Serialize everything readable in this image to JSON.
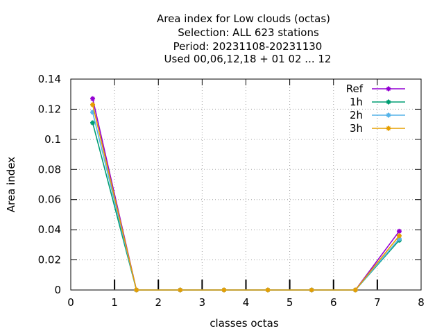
{
  "chart_data": {
    "type": "line",
    "title_lines": [
      "Area index  for Low clouds (octas)",
      "Selection: ALL    623 stations",
      "Period: 20231108-20231130",
      "Used  00,06,12,18 + 01 02 ... 12"
    ],
    "xlabel": "classes octas",
    "ylabel": "Area index",
    "xlim": [
      0,
      8
    ],
    "ylim": [
      0,
      0.14
    ],
    "xticks": [
      0,
      1,
      2,
      3,
      4,
      5,
      6,
      7,
      8
    ],
    "xtick_labels": [
      "0",
      "1",
      "2",
      "3",
      "4",
      "5",
      "6",
      "7",
      "8"
    ],
    "yticks": [
      0,
      0.02,
      0.04,
      0.06,
      0.08,
      0.1,
      0.12,
      0.14
    ],
    "ytick_labels": [
      "0",
      "0.02",
      "0.04",
      "0.06",
      "0.08",
      "0.1",
      "0.12",
      "0.14"
    ],
    "grid": true,
    "legend_position": "top-right",
    "x": [
      0.5,
      1.5,
      2.5,
      3.5,
      4.5,
      5.5,
      6.5,
      7.5
    ],
    "series": [
      {
        "name": "Ref",
        "color": "#9400d3",
        "values": [
          0.127,
          0,
          0,
          0,
          0,
          0,
          0,
          0.039
        ]
      },
      {
        "name": "1h",
        "color": "#009e73",
        "values": [
          0.111,
          0,
          0,
          0,
          0,
          0,
          0,
          0.033
        ]
      },
      {
        "name": "2h",
        "color": "#56b4e9",
        "values": [
          0.118,
          0,
          0,
          0,
          0,
          0,
          0,
          0.034
        ]
      },
      {
        "name": "3h",
        "color": "#e69f00",
        "values": [
          0.123,
          0,
          0,
          0,
          0,
          0,
          0,
          0.036
        ]
      }
    ]
  }
}
